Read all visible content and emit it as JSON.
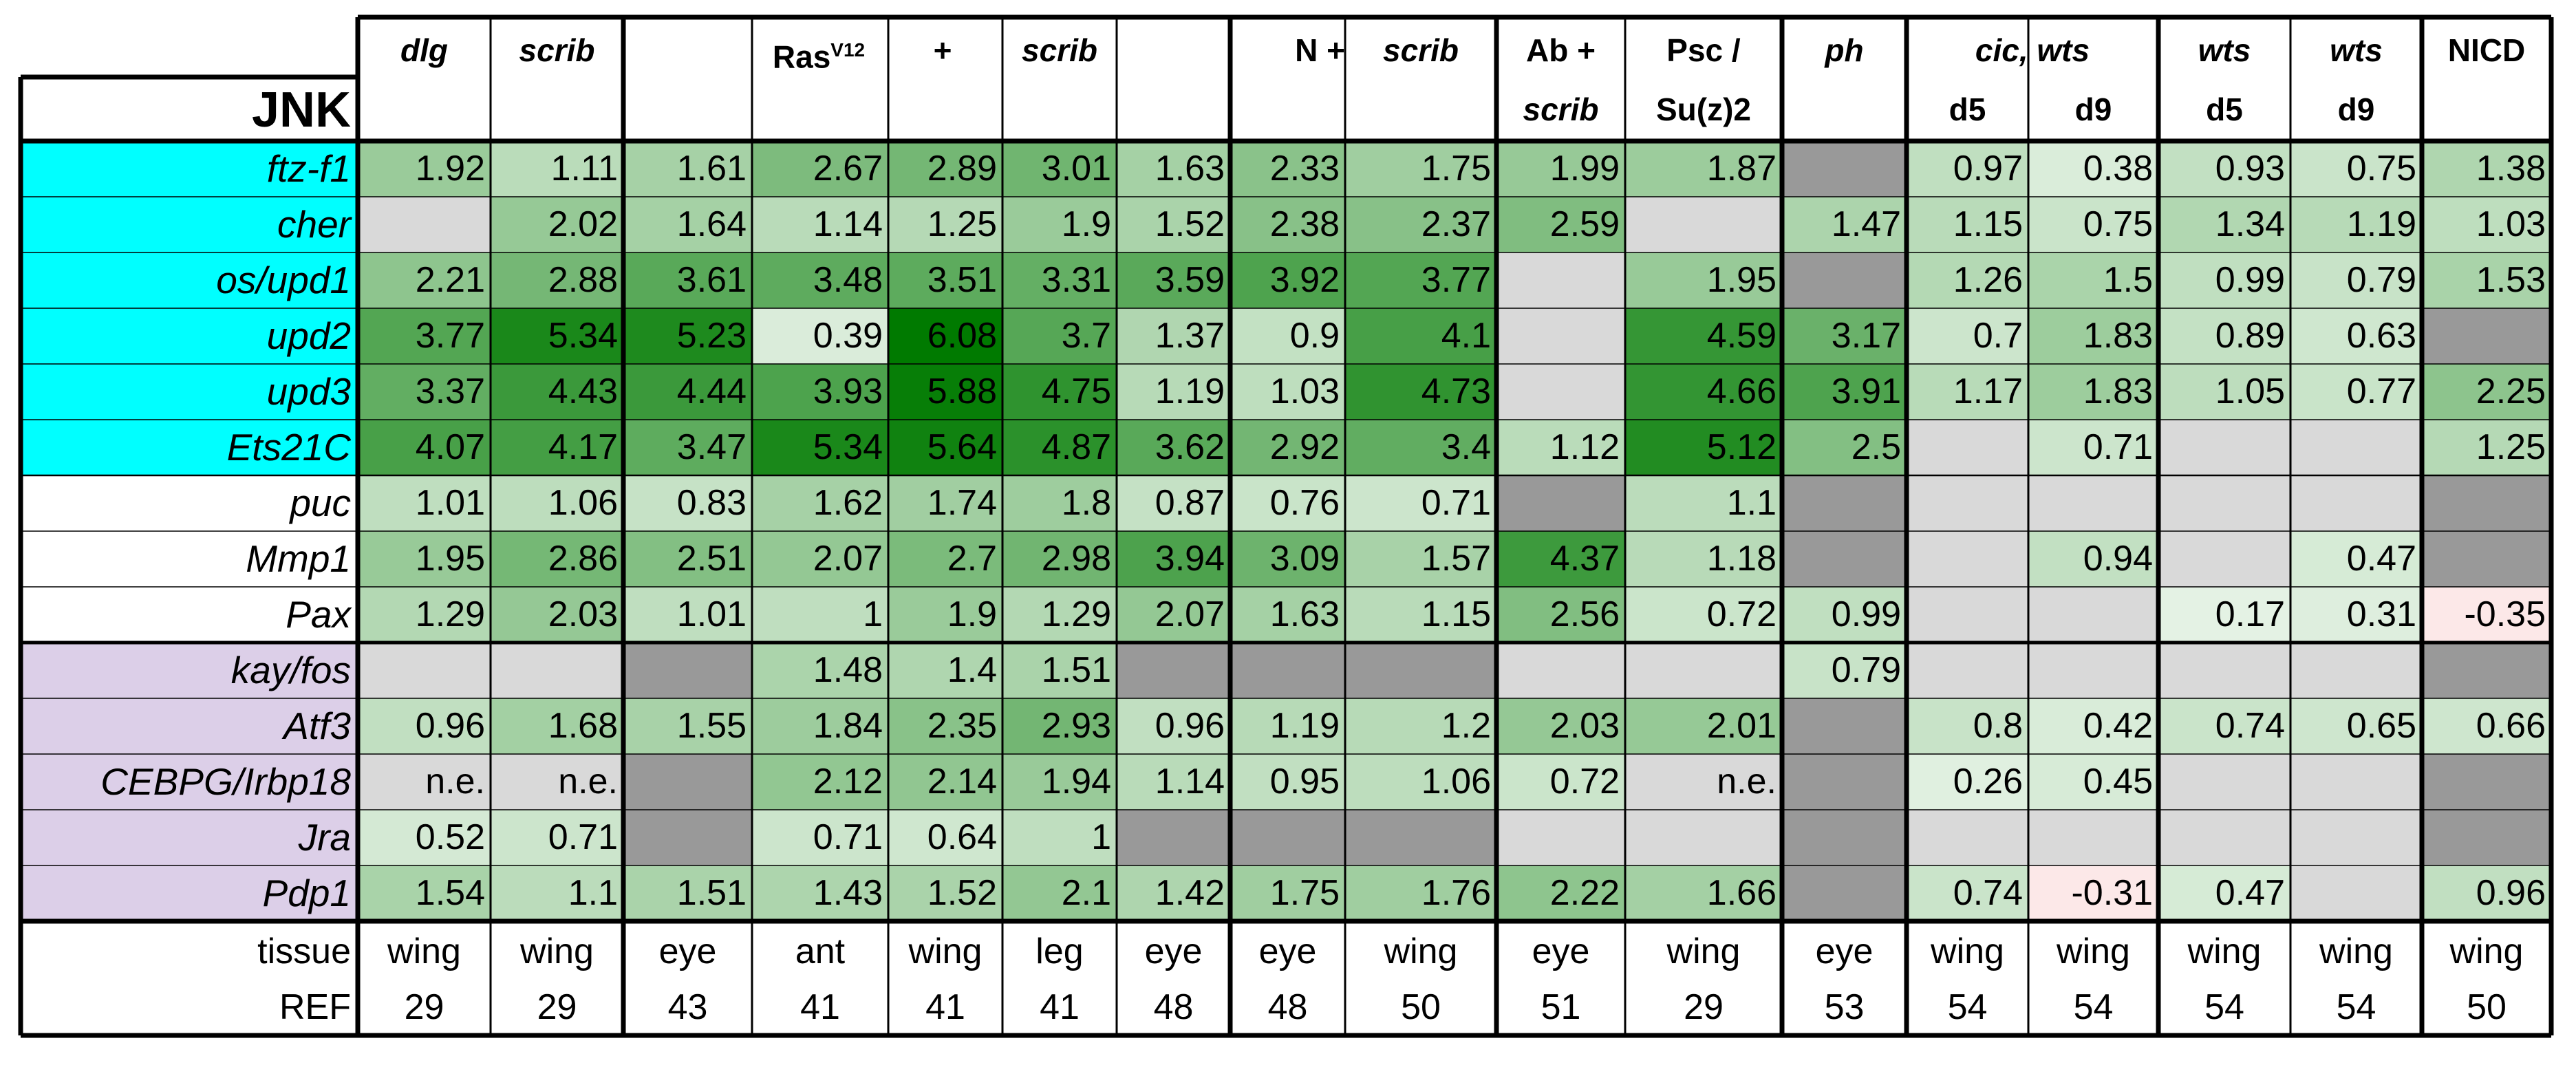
{
  "corner_label": "JNK",
  "header": {
    "groups": [
      {
        "id": "dlg",
        "top": "dlg",
        "top_italic": true,
        "bottom": ""
      },
      {
        "id": "scrib",
        "top": "scrib",
        "top_italic": true,
        "bottom": ""
      },
      {
        "id": "n",
        "top": "N +",
        "top_italic": false,
        "extra": "scrib",
        "bottom": ""
      },
      {
        "id": "ab",
        "top": "Ab +",
        "top_italic": false,
        "bottom": "scrib",
        "bottom_italic": true
      },
      {
        "id": "psc",
        "top": "Psc /",
        "top_italic": false,
        "bottom": "Su(z)2",
        "bottom_italic": false
      },
      {
        "id": "ph",
        "top": "ph",
        "top_italic": true,
        "bottom": ""
      },
      {
        "id": "nicd",
        "top": "NICD",
        "top_italic": false,
        "bottom": ""
      }
    ],
    "ras": {
      "ras": "Ras",
      "sup": "V12",
      "plus": "+",
      "scrib": "scrib"
    },
    "cic": {
      "top": "cic, wts",
      "d5": "d5",
      "d9": "d9"
    },
    "wts": {
      "top1": "wts",
      "top2": "wts",
      "d5": "d5",
      "d9": "d9"
    }
  },
  "rows": [
    {
      "gene": "ftz-f1",
      "group": "cyan",
      "cells": [
        "1.92",
        "1.11",
        "1.61",
        "2.67",
        "2.89",
        "3.01",
        "1.63",
        "2.33",
        "1.75",
        "1.99",
        "1.87",
        "",
        "0.97",
        "0.38",
        "0.93",
        "0.75",
        "1.38"
      ],
      "shade": [
        null,
        null,
        null,
        null,
        null,
        null,
        null,
        null,
        null,
        null,
        null,
        "dark",
        null,
        null,
        null,
        null,
        null
      ]
    },
    {
      "gene": "cher",
      "group": "cyan",
      "cells": [
        "",
        "2.02",
        "1.64",
        "1.14",
        "1.25",
        "1.9",
        "1.52",
        "2.38",
        "2.37",
        "2.59",
        "",
        "1.47",
        "1.15",
        "0.75",
        "1.34",
        "1.19",
        "1.03"
      ],
      "shade": [
        "light",
        null,
        null,
        null,
        null,
        null,
        null,
        null,
        null,
        null,
        "light",
        null,
        null,
        null,
        null,
        null,
        null
      ]
    },
    {
      "gene": "os/upd1",
      "group": "cyan",
      "cells": [
        "2.21",
        "2.88",
        "3.61",
        "3.48",
        "3.51",
        "3.31",
        "3.59",
        "3.92",
        "3.77",
        "",
        "1.95",
        "",
        "1.26",
        "1.5",
        "0.99",
        "0.79",
        "1.53"
      ],
      "shade": [
        null,
        null,
        null,
        null,
        null,
        null,
        null,
        null,
        null,
        "light",
        null,
        "dark",
        null,
        null,
        null,
        null,
        null
      ]
    },
    {
      "gene": "upd2",
      "group": "cyan",
      "cells": [
        "3.77",
        "5.34",
        "5.23",
        "0.39",
        "6.08",
        "3.7",
        "1.37",
        "0.9",
        "4.1",
        "",
        "4.59",
        "3.17",
        "0.7",
        "1.83",
        "0.89",
        "0.63",
        ""
      ],
      "shade": [
        null,
        null,
        null,
        null,
        null,
        null,
        null,
        null,
        null,
        "light",
        null,
        null,
        null,
        null,
        null,
        null,
        "dark"
      ]
    },
    {
      "gene": "upd3",
      "group": "cyan",
      "cells": [
        "3.37",
        "4.43",
        "4.44",
        "3.93",
        "5.88",
        "4.75",
        "1.19",
        "1.03",
        "4.73",
        "",
        "4.66",
        "3.91",
        "1.17",
        "1.83",
        "1.05",
        "0.77",
        "2.25"
      ],
      "shade": [
        null,
        null,
        null,
        null,
        null,
        null,
        null,
        null,
        null,
        "light",
        null,
        null,
        null,
        null,
        null,
        null,
        null
      ]
    },
    {
      "gene": "Ets21C",
      "group": "cyan",
      "cells": [
        "4.07",
        "4.17",
        "3.47",
        "5.34",
        "5.64",
        "4.87",
        "3.62",
        "2.92",
        "3.4",
        "1.12",
        "5.12",
        "2.5",
        "",
        "0.71",
        "",
        "",
        "1.25"
      ],
      "shade": [
        null,
        null,
        null,
        null,
        null,
        null,
        null,
        null,
        null,
        null,
        null,
        null,
        "light",
        null,
        "light",
        "light",
        null
      ]
    },
    {
      "gene": "puc",
      "group": "white",
      "cells": [
        "1.01",
        "1.06",
        "0.83",
        "1.62",
        "1.74",
        "1.8",
        "0.87",
        "0.76",
        "0.71",
        "",
        "1.1",
        "",
        "",
        "",
        "",
        "",
        ""
      ],
      "shade": [
        null,
        null,
        null,
        null,
        null,
        null,
        null,
        null,
        null,
        "dark",
        null,
        "dark",
        "light",
        "light",
        "light",
        "light",
        "dark"
      ]
    },
    {
      "gene": "Mmp1",
      "group": "white",
      "cells": [
        "1.95",
        "2.86",
        "2.51",
        "2.07",
        "2.7",
        "2.98",
        "3.94",
        "3.09",
        "1.57",
        "4.37",
        "1.18",
        "",
        "",
        "0.94",
        "",
        "0.47",
        ""
      ],
      "shade": [
        null,
        null,
        null,
        null,
        null,
        null,
        null,
        null,
        null,
        null,
        null,
        "dark",
        "light",
        null,
        "light",
        null,
        "dark"
      ]
    },
    {
      "gene": "Pax",
      "group": "white",
      "cells": [
        "1.29",
        "2.03",
        "1.01",
        "1",
        "1.9",
        "1.29",
        "2.07",
        "1.63",
        "1.15",
        "2.56",
        "0.72",
        "0.99",
        "",
        "",
        "0.17",
        "0.31",
        "-0.35"
      ],
      "shade": [
        null,
        null,
        null,
        null,
        null,
        null,
        null,
        null,
        null,
        null,
        null,
        null,
        "light",
        "light",
        null,
        null,
        null
      ]
    },
    {
      "gene": "kay/fos",
      "group": "lavender",
      "cells": [
        "",
        "",
        "",
        "1.48",
        "1.4",
        "1.51",
        "",
        "",
        "",
        "",
        "",
        "0.79",
        "",
        "",
        "",
        "",
        ""
      ],
      "shade": [
        "light",
        "light",
        "dark",
        null,
        null,
        null,
        "dark",
        "dark",
        "dark",
        "light",
        "light",
        null,
        "light",
        "light",
        "light",
        "light",
        "dark"
      ]
    },
    {
      "gene": "Atf3",
      "group": "lavender",
      "cells": [
        "0.96",
        "1.68",
        "1.55",
        "1.84",
        "2.35",
        "2.93",
        "0.96",
        "1.19",
        "1.2",
        "2.03",
        "2.01",
        "",
        "0.8",
        "0.42",
        "0.74",
        "0.65",
        "0.66"
      ],
      "shade": [
        null,
        null,
        null,
        null,
        null,
        null,
        null,
        null,
        null,
        null,
        null,
        "dark",
        null,
        null,
        null,
        null,
        null
      ]
    },
    {
      "gene": "CEBPG/Irbp18",
      "group": "lavender",
      "cells": [
        "n.e.",
        "n.e.",
        "",
        "2.12",
        "2.14",
        "1.94",
        "1.14",
        "0.95",
        "1.06",
        "0.72",
        "n.e.",
        "",
        "0.26",
        "0.45",
        "",
        "",
        ""
      ],
      "shade": [
        "light",
        "light",
        "dark",
        null,
        null,
        null,
        null,
        null,
        null,
        null,
        "light",
        "dark",
        null,
        null,
        "light",
        "light",
        "dark"
      ]
    },
    {
      "gene": "Jra",
      "group": "lavender",
      "cells": [
        "0.52",
        "0.71",
        "",
        "0.71",
        "0.64",
        "1",
        "",
        "",
        "",
        "",
        "",
        "",
        "",
        "",
        "",
        "",
        ""
      ],
      "shade": [
        null,
        null,
        "dark",
        null,
        null,
        null,
        "dark",
        "dark",
        "dark",
        "light",
        "light",
        "dark",
        "light",
        "light",
        "light",
        "light",
        "dark"
      ]
    },
    {
      "gene": "Pdp1",
      "group": "lavender",
      "cells": [
        "1.54",
        "1.1",
        "1.51",
        "1.43",
        "1.52",
        "2.1",
        "1.42",
        "1.75",
        "1.76",
        "2.22",
        "1.66",
        "",
        "0.74",
        "-0.31",
        "0.47",
        "",
        "0.96"
      ],
      "shade": [
        null,
        null,
        null,
        null,
        null,
        null,
        null,
        null,
        null,
        null,
        null,
        "dark",
        null,
        null,
        null,
        "light",
        null
      ]
    }
  ],
  "footer": {
    "tissue_label": "tissue",
    "ref_label": "REF",
    "tissue": [
      "wing",
      "wing",
      "eye",
      "ant",
      "wing",
      "leg",
      "eye",
      "eye",
      "wing",
      "eye",
      "wing",
      "eye",
      "wing",
      "wing",
      "wing",
      "wing",
      "wing"
    ],
    "ref": [
      "29",
      "29",
      "43",
      "41",
      "41",
      "41",
      "48",
      "48",
      "50",
      "51",
      "29",
      "53",
      "54",
      "54",
      "54",
      "54",
      "50"
    ]
  },
  "colors": {
    "cyan": "#00ffff",
    "lavender": "#dccfe8",
    "shade_light": "#d9d9d9",
    "shade_dark": "#999999",
    "green_max": "#007a00",
    "green_min": "#eef7ee",
    "negative": "#fce8e8",
    "border": "#000000"
  }
}
